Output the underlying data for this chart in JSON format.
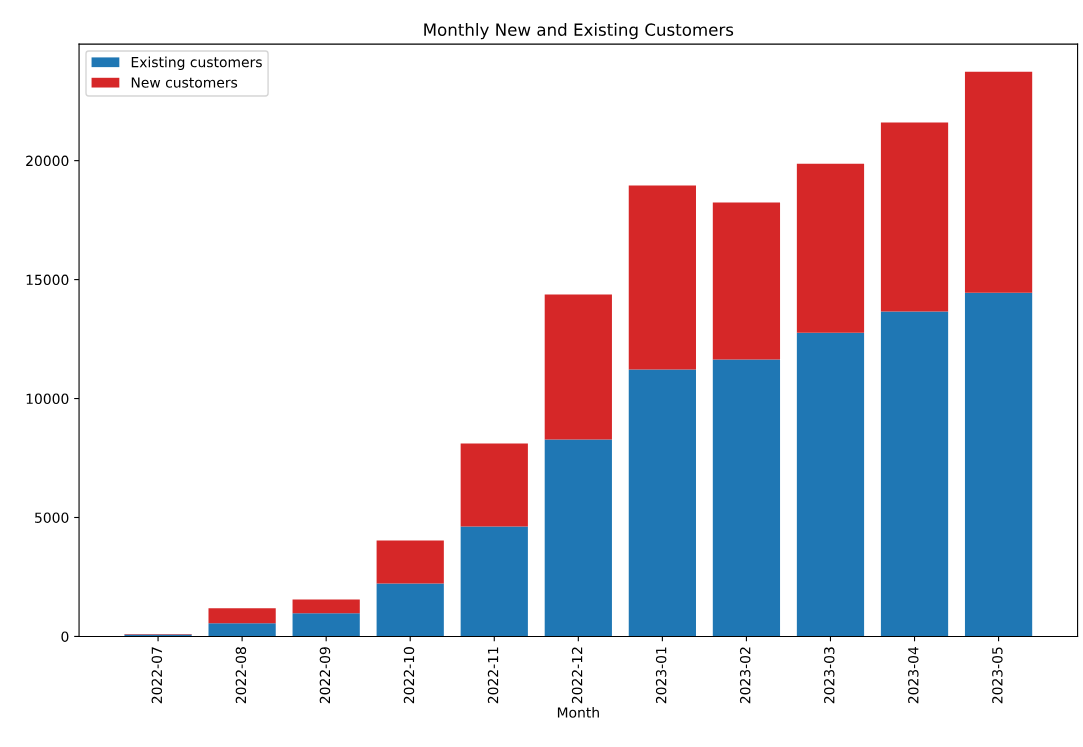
{
  "chart_data": {
    "type": "bar",
    "title": "Monthly New and Existing Customers",
    "xlabel": "Month",
    "categories": [
      "2022-07",
      "2022-08",
      "2022-09",
      "2022-10",
      "2022-11",
      "2022-12",
      "2023-01",
      "2023-02",
      "2023-03",
      "2023-04",
      "2023-05"
    ],
    "stacked": true,
    "series": [
      {
        "name": "Existing customers",
        "color": "#1f77b4",
        "values": [
          80,
          550,
          970,
          2230,
          4620,
          8280,
          11220,
          11640,
          12770,
          13660,
          14450
        ]
      },
      {
        "name": "New customers",
        "color": "#d62728",
        "values": [
          20,
          630,
          580,
          1800,
          3490,
          6090,
          7730,
          6600,
          7100,
          7940,
          9290
        ]
      }
    ],
    "ylim": [
      0,
      24900
    ],
    "yticks": [
      0,
      5000,
      10000,
      15000,
      20000
    ],
    "grid": false,
    "legend": "top left"
  }
}
